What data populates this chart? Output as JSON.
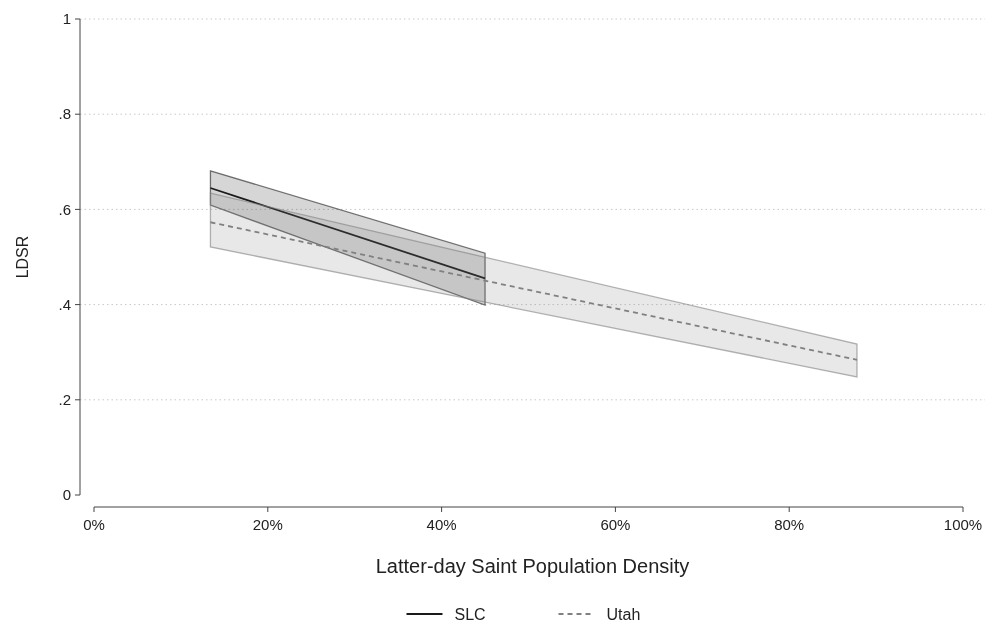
{
  "chart_data": {
    "type": "line",
    "xlabel": "Latter-day Saint Population Density",
    "ylabel": "LDSR",
    "xlim": [
      0,
      100
    ],
    "xticks": [
      {
        "value": 0,
        "label": "0%"
      },
      {
        "value": 20,
        "label": "20%"
      },
      {
        "value": 40,
        "label": "40%"
      },
      {
        "value": 60,
        "label": "60%"
      },
      {
        "value": 80,
        "label": "80%"
      },
      {
        "value": 100,
        "label": "100%"
      }
    ],
    "ylim": [
      0,
      1
    ],
    "yticks": [
      {
        "value": 0,
        "label": "0"
      },
      {
        "value": 0.2,
        "label": ".2"
      },
      {
        "value": 0.4,
        "label": ".4"
      },
      {
        "value": 0.6,
        "label": ".6"
      },
      {
        "value": 0.8,
        "label": ".8"
      },
      {
        "value": 1,
        "label": "1"
      }
    ],
    "grid": "y",
    "legend": "bottom",
    "marker": "none",
    "series": [
      {
        "name": "SLC",
        "color": "#1a1a1a",
        "line_style": "solid",
        "x": [
          13.4,
          45
        ],
        "values": [
          0.645,
          0.455
        ],
        "lower": [
          0.609,
          0.399
        ],
        "upper": [
          0.681,
          0.508
        ]
      },
      {
        "name": "Utah",
        "color": "#808080",
        "line_style": "dashed",
        "x": [
          13.4,
          87.8
        ],
        "values": [
          0.573,
          0.284
        ],
        "lower": [
          0.521,
          0.248
        ],
        "upper": [
          0.634,
          0.317
        ]
      }
    ]
  }
}
